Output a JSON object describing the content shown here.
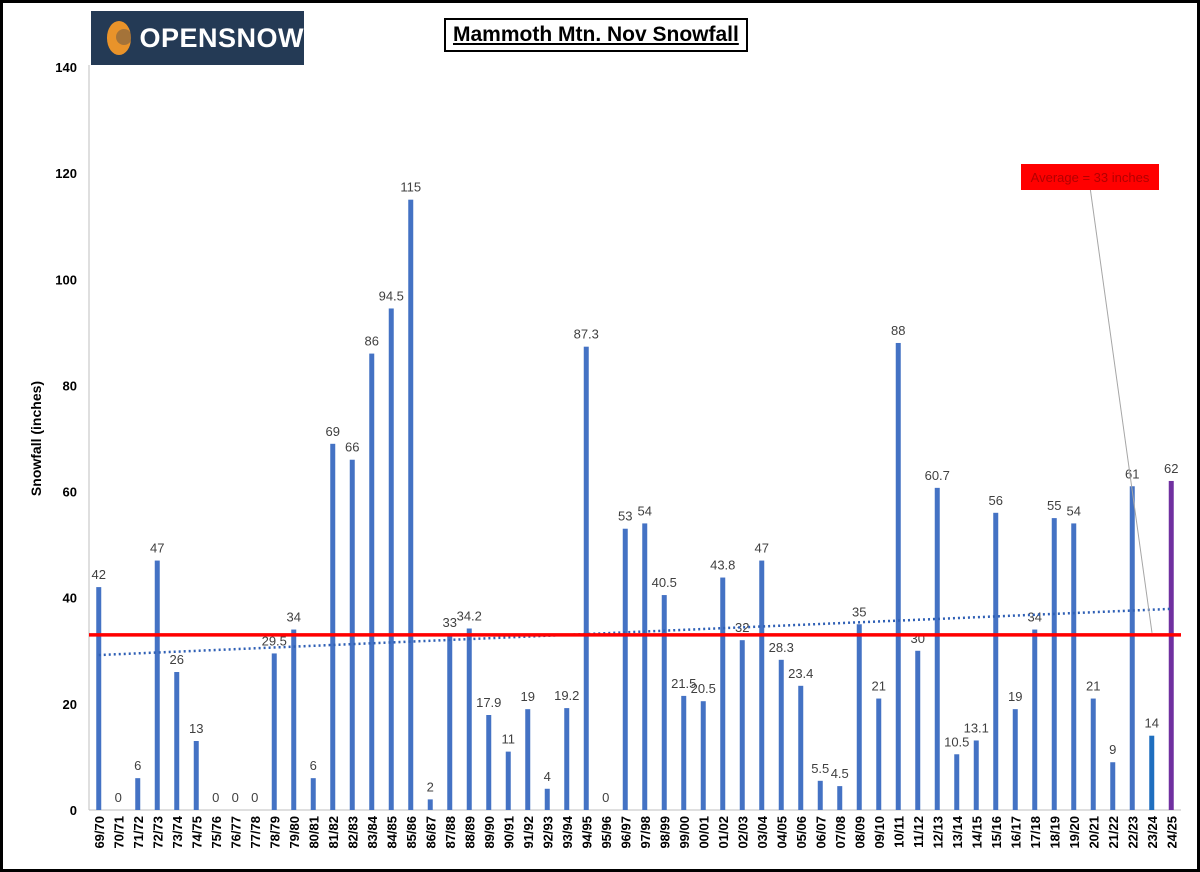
{
  "logo": {
    "text": "OPENSNOW",
    "icon": "opensnow-logo-icon"
  },
  "chart_data": {
    "type": "bar",
    "title": "Mammoth Mtn. Nov Snowfall",
    "xlabel": "",
    "ylabel": "Snowfall (inches)",
    "ylim": [
      0,
      140
    ],
    "yticks": [
      0,
      20,
      40,
      60,
      80,
      100,
      120,
      140
    ],
    "grid": false,
    "categories": [
      "69/70",
      "70/71",
      "71/72",
      "72/73",
      "73/74",
      "74/75",
      "75/76",
      "76/77",
      "77/78",
      "78/79",
      "79/80",
      "80/81",
      "81/82",
      "82/83",
      "83/84",
      "84/85",
      "85/86",
      "86/87",
      "87/88",
      "88/89",
      "89/90",
      "90/91",
      "91/92",
      "92/93",
      "93/94",
      "94/95",
      "95/96",
      "96/97",
      "97/98",
      "98/99",
      "99/00",
      "00/01",
      "01/02",
      "02/03",
      "03/04",
      "04/05",
      "05/06",
      "06/07",
      "07/08",
      "08/09",
      "09/10",
      "10/11",
      "11/12",
      "12/13",
      "13/14",
      "14/15",
      "15/16",
      "16/17",
      "17/18",
      "18/19",
      "19/20",
      "20/21",
      "21/22",
      "22/23",
      "23/24",
      "24/25"
    ],
    "values": [
      42,
      0,
      6,
      47,
      26,
      13,
      0,
      0,
      0,
      29.5,
      34,
      6,
      69,
      66,
      86,
      94.5,
      115,
      2,
      33,
      34.2,
      17.9,
      11,
      19,
      4,
      19.2,
      87.3,
      0,
      53,
      54,
      40.5,
      21.5,
      20.5,
      43.8,
      32,
      47,
      28.3,
      23.4,
      5.5,
      4.5,
      35,
      21,
      88,
      30,
      60.7,
      10.5,
      13.1,
      56,
      19,
      34,
      55,
      54,
      21,
      9,
      61,
      14,
      62
    ],
    "labels": [
      "42",
      "0",
      "6",
      "47",
      "26",
      "13",
      "0",
      "0",
      "0",
      "29.5",
      "34",
      "6",
      "69",
      "66",
      "86",
      "94.5",
      "115",
      "2",
      "33",
      "34.2",
      "17.9",
      "11",
      "19",
      "4",
      "19.2",
      "87.3",
      "0",
      "53",
      "54",
      "40.5",
      "21.5",
      "20.5",
      "43.8",
      "32",
      "47",
      "28.3",
      "23.4",
      "5.5",
      "4.5",
      "35",
      "21",
      "88",
      "30",
      "60.7",
      "10.5",
      "13.1",
      "56",
      "19",
      "34",
      "55",
      "54",
      "21",
      "9",
      "61",
      "14",
      "62"
    ],
    "colors": {
      "default": "#4472c4",
      "23/24": "#1f6fbf",
      "24/25": "#7030a0"
    },
    "average": {
      "value": 33,
      "label": "Average = 33 inches",
      "color": "#ff0000"
    },
    "trendline": {
      "start": 29.2,
      "end": 37.9,
      "color": "#2e5fb5",
      "style": "dotted"
    }
  }
}
